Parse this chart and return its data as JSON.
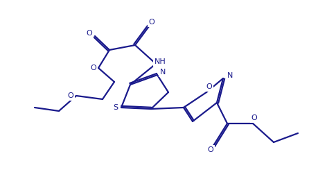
{
  "bg_color": "#ffffff",
  "line_color": "#1a1a8c",
  "line_width": 1.6,
  "figsize": [
    4.59,
    2.58
  ],
  "dpi": 100,
  "xlim": [
    0,
    459
  ],
  "ylim": [
    0,
    258
  ]
}
